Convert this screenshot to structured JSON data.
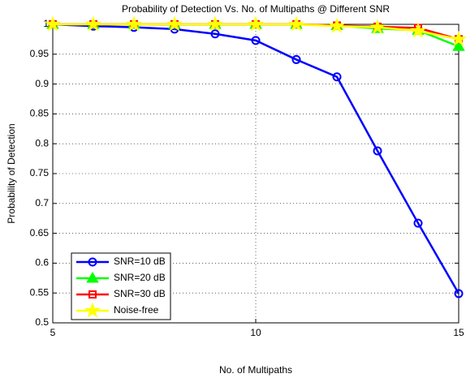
{
  "chart_data": {
    "type": "line",
    "title": "Probability of Detection Vs. No. of Multipaths @ Different SNR",
    "x_label": "No. of Multipaths",
    "y_label": "Probability of Detection",
    "x": [
      5,
      6,
      7,
      8,
      9,
      10,
      11,
      12,
      13,
      14,
      15
    ],
    "series": [
      {
        "name": "SNR=10 dB",
        "color": "#0000ff",
        "marker": "circle",
        "values": [
          1.0,
          0.997,
          0.995,
          0.992,
          0.984,
          0.973,
          0.941,
          0.912,
          0.788,
          0.667,
          0.549
        ]
      },
      {
        "name": "SNR=20 dB",
        "color": "#00ff00",
        "marker": "triangle",
        "values": [
          1.0,
          1.0,
          1.0,
          1.0,
          1.0,
          1.0,
          1.0,
          0.998,
          0.993,
          0.99,
          0.963
        ]
      },
      {
        "name": "SNR=30 dB",
        "color": "#ff0000",
        "marker": "square",
        "values": [
          1.0,
          1.0,
          1.0,
          1.0,
          1.0,
          1.0,
          1.0,
          0.998,
          0.996,
          0.994,
          0.975
        ]
      },
      {
        "name": "Noise-free",
        "color": "#ffff00",
        "marker": "star",
        "values": [
          1.0,
          1.0,
          1.0,
          1.0,
          1.0,
          1.0,
          1.0,
          0.997,
          0.995,
          0.989,
          0.975
        ]
      }
    ],
    "xlim": [
      5,
      15
    ],
    "xticks": [
      5,
      10,
      15
    ],
    "ylim": [
      0.5,
      1
    ],
    "yticks": [
      0.5,
      0.55,
      0.6,
      0.65,
      0.7,
      0.75,
      0.8,
      0.85,
      0.9,
      0.95,
      1
    ],
    "grid": true,
    "legend": "lower left"
  }
}
